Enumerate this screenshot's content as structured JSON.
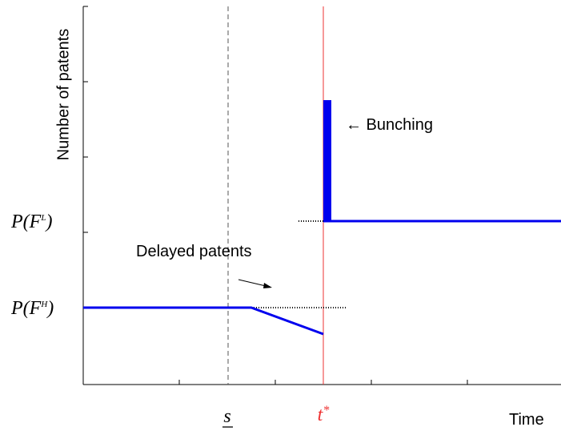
{
  "y_axis_label": "Number of patents",
  "x_axis_label": "Time",
  "level_low": {
    "prefix": "P(F",
    "sup": "L",
    "suffix": ")"
  },
  "level_high": {
    "prefix": "P(F",
    "sup": "H",
    "suffix": ")"
  },
  "bunching_label": "← Bunching",
  "delayed_label": "Delayed patents",
  "marker_s": "s",
  "marker_t": {
    "base": "t",
    "sup": "*"
  }
}
